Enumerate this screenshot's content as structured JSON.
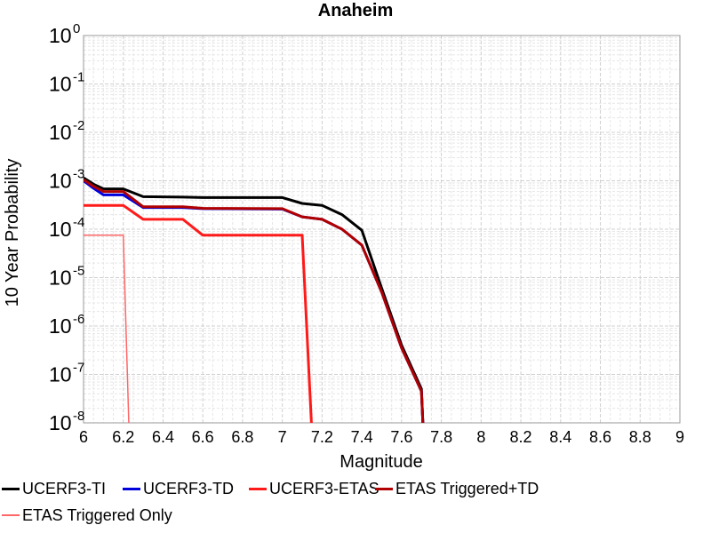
{
  "chart_data": {
    "type": "line",
    "title": "Anaheim",
    "xlabel": "Magnitude",
    "ylabel": "10 Year Probability",
    "xlim": [
      6,
      9
    ],
    "ylim": [
      1e-08,
      1
    ],
    "yscale": "log",
    "grid": true,
    "legend_position": "bottom",
    "x_ticks": [
      "6",
      "6.2",
      "6.4",
      "6.6",
      "6.8",
      "7",
      "7.2",
      "7.4",
      "7.6",
      "7.8",
      "8",
      "8.2",
      "8.4",
      "8.6",
      "8.8",
      "9"
    ],
    "y_ticks": [
      {
        "base": "10",
        "exp": "0",
        "value": 1
      },
      {
        "base": "10",
        "exp": "-1",
        "value": 0.1
      },
      {
        "base": "10",
        "exp": "-2",
        "value": 0.01
      },
      {
        "base": "10",
        "exp": "-3",
        "value": 0.001
      },
      {
        "base": "10",
        "exp": "-4",
        "value": 0.0001
      },
      {
        "base": "10",
        "exp": "-5",
        "value": 1e-05
      },
      {
        "base": "10",
        "exp": "-6",
        "value": 1e-06
      },
      {
        "base": "10",
        "exp": "-7",
        "value": 1e-07
      },
      {
        "base": "10",
        "exp": "-8",
        "value": 1e-08
      }
    ],
    "series": [
      {
        "name": "UCERF3-TI",
        "color": "#000000",
        "width": 3,
        "points": [
          [
            6.0,
            0.00115
          ],
          [
            6.05,
            0.00085
          ],
          [
            6.1,
            0.00068
          ],
          [
            6.2,
            0.00068
          ],
          [
            6.3,
            0.00047
          ],
          [
            6.5,
            0.00046
          ],
          [
            6.6,
            0.00045
          ],
          [
            7.0,
            0.00045
          ],
          [
            7.1,
            0.00034
          ],
          [
            7.2,
            0.00031
          ],
          [
            7.3,
            0.0002
          ],
          [
            7.4,
            9.5e-05
          ],
          [
            7.5,
            6e-06
          ],
          [
            7.6,
            4e-07
          ],
          [
            7.7,
            5e-08
          ],
          [
            7.71,
            5e-09
          ]
        ]
      },
      {
        "name": "UCERF3-TD",
        "color": "#0000dd",
        "width": 3,
        "points": [
          [
            6.0,
            0.001
          ],
          [
            6.05,
            0.0007
          ],
          [
            6.1,
            0.00051
          ],
          [
            6.2,
            0.00051
          ],
          [
            6.3,
            0.00028
          ],
          [
            6.5,
            0.00028
          ],
          [
            6.6,
            0.000265
          ],
          [
            7.0,
            0.00026
          ],
          [
            7.1,
            0.00018
          ],
          [
            7.2,
            0.00016
          ],
          [
            7.3,
            0.0001
          ],
          [
            7.4,
            4.7e-05
          ],
          [
            7.5,
            5e-06
          ],
          [
            7.6,
            3.5e-07
          ],
          [
            7.7,
            4.5e-08
          ],
          [
            7.71,
            5e-09
          ]
        ]
      },
      {
        "name": "UCERF3-ETAS",
        "color": "#ff1a1a",
        "width": 3,
        "points": [
          [
            6.0,
            0.00031
          ],
          [
            6.2,
            0.00031
          ],
          [
            6.3,
            0.00016
          ],
          [
            6.5,
            0.00016
          ],
          [
            6.6,
            7.5e-05
          ],
          [
            7.1,
            7.5e-05
          ],
          [
            7.15,
            5e-09
          ]
        ]
      },
      {
        "name": "ETAS Triggered+TD",
        "color": "#b00000",
        "width": 3,
        "points": [
          [
            6.0,
            0.00105
          ],
          [
            6.05,
            0.00077
          ],
          [
            6.1,
            0.0006
          ],
          [
            6.2,
            0.0006
          ],
          [
            6.3,
            0.00029
          ],
          [
            6.5,
            0.00029
          ],
          [
            6.6,
            0.00027
          ],
          [
            7.0,
            0.000265
          ],
          [
            7.1,
            0.00018
          ],
          [
            7.2,
            0.00016
          ],
          [
            7.3,
            0.0001
          ],
          [
            7.4,
            4.7e-05
          ],
          [
            7.5,
            5e-06
          ],
          [
            7.6,
            3.5e-07
          ],
          [
            7.7,
            4.5e-08
          ],
          [
            7.71,
            5e-09
          ]
        ]
      },
      {
        "name": "ETAS Triggered Only",
        "color": "#ff6666",
        "width": 1.5,
        "points": [
          [
            6.0,
            7.5e-05
          ],
          [
            6.2,
            7.5e-05
          ],
          [
            6.23,
            5e-09
          ]
        ]
      }
    ]
  }
}
